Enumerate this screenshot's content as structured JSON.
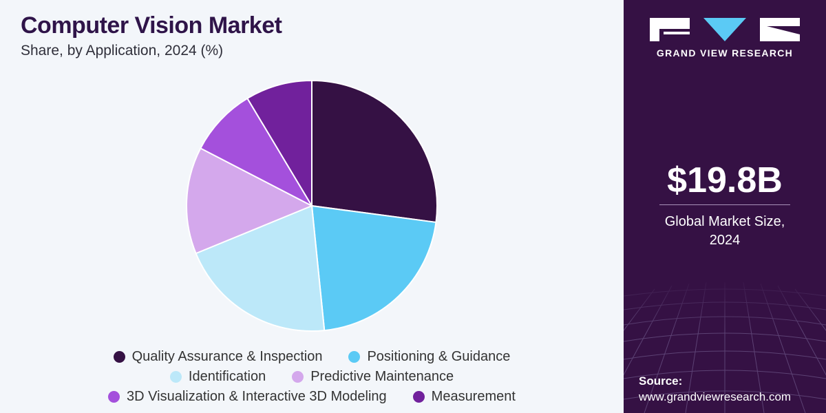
{
  "header": {
    "title": "Computer Vision Market",
    "subtitle": "Share, by Application, 2024 (%)"
  },
  "chart_data": {
    "type": "pie",
    "categories": [
      "Quality Assurance & Inspection",
      "Positioning & Guidance",
      "Identification",
      "Predictive Maintenance",
      "3D Visualization & Interactive 3D Modeling",
      "Measurement"
    ],
    "values": [
      27.1,
      21.3,
      20.4,
      13.8,
      8.8,
      8.6
    ],
    "colors": [
      "#351144",
      "#5bcaf5",
      "#bce8f9",
      "#d4a8ec",
      "#a450dc",
      "#71219c"
    ],
    "start_angle": "12 o'clock",
    "direction": "clockwise",
    "legend_position": "bottom"
  },
  "sidebar": {
    "brand": "GRAND VIEW RESEARCH",
    "market_value": "$19.8B",
    "market_label_line1": "Global Market Size,",
    "market_label_line2": "2024",
    "source_label": "Source:",
    "source_url": "www.grandviewresearch.com"
  }
}
